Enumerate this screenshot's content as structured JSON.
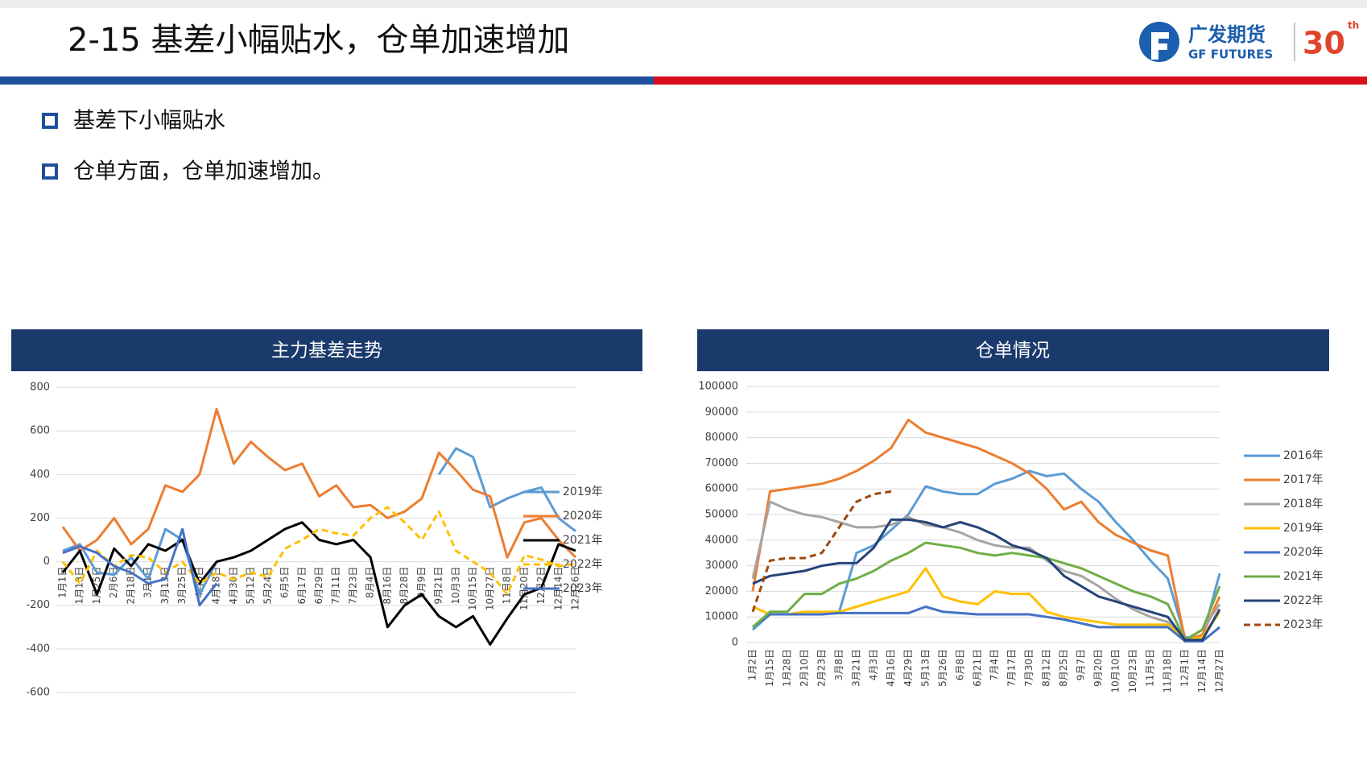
{
  "header": {
    "title": "2-15 基差小幅贴水，仓单加速增加",
    "logo_cn": "广发期货",
    "logo_en": "GF FUTURES",
    "badge": "30",
    "badge_sup": "th"
  },
  "bullets": [
    "基差下小幅贴水",
    "仓单方面，仓单加速增加。"
  ],
  "chart_data": [
    {
      "type": "line",
      "title": "主力基差走势",
      "categories": [
        "1月1日",
        "1月13日",
        "1月25日",
        "2月6日",
        "2月18日",
        "3月1日",
        "3月13日",
        "3月25日",
        "4月6日",
        "4月18日",
        "4月30日",
        "5月12日",
        "5月24日",
        "6月5日",
        "6月17日",
        "6月29日",
        "7月11日",
        "7月23日",
        "8月4日",
        "8月16日",
        "8月28日",
        "9月9日",
        "9月21日",
        "10月3日",
        "10月15日",
        "10月27日",
        "11月8日",
        "11月20日",
        "12月2日",
        "12月14日",
        "12月26日"
      ],
      "series": [
        {
          "name": "2019年",
          "color": "#5b9bd5",
          "dashed": false,
          "values": [
            50,
            80,
            -50,
            -60,
            20,
            -80,
            150,
            100,
            -150,
            0,
            null,
            null,
            null,
            null,
            null,
            null,
            null,
            null,
            null,
            null,
            null,
            null,
            400,
            520,
            480,
            250,
            290,
            320,
            340,
            200,
            140
          ]
        },
        {
          "name": "2020年",
          "color": "#ed7d31",
          "dashed": false,
          "values": [
            160,
            50,
            100,
            200,
            80,
            150,
            350,
            320,
            400,
            700,
            450,
            550,
            480,
            420,
            450,
            300,
            350,
            250,
            260,
            200,
            230,
            290,
            500,
            420,
            330,
            300,
            20,
            180,
            200,
            100,
            20
          ]
        },
        {
          "name": "2021年",
          "color": "#000000",
          "dashed": false,
          "values": [
            -50,
            50,
            -150,
            60,
            -20,
            80,
            50,
            100,
            -100,
            0,
            20,
            50,
            100,
            150,
            180,
            100,
            80,
            100,
            20,
            -300,
            -200,
            -150,
            -250,
            -300,
            -250,
            -380,
            -260,
            -150,
            -120,
            80,
            50
          ]
        },
        {
          "name": "2022年",
          "color": "#ffc000",
          "dashed": true,
          "values": [
            0,
            -100,
            50,
            -20,
            30,
            20,
            -50,
            0,
            -100,
            -50,
            -80,
            -50,
            -70,
            60,
            100,
            150,
            130,
            120,
            200,
            250,
            180,
            100,
            230,
            50,
            0,
            -50,
            -150,
            30,
            10,
            -20,
            -10
          ]
        },
        {
          "name": "2023年",
          "color": "#4472c4",
          "dashed": false,
          "values": [
            40,
            70,
            40,
            -20,
            -50,
            -100,
            -80,
            150,
            -200,
            -100,
            null,
            null,
            null,
            null,
            null,
            null,
            null,
            null,
            null,
            null,
            null,
            null,
            null,
            null,
            null,
            null,
            null,
            null,
            null,
            null,
            null
          ]
        }
      ],
      "ylim": [
        -600,
        800
      ],
      "yticks": [
        -600,
        -400,
        -200,
        0,
        200,
        400,
        600,
        800
      ],
      "grid": true,
      "legend": "right"
    },
    {
      "type": "line",
      "title": "仓单情况",
      "categories": [
        "1月2日",
        "1月15日",
        "1月28日",
        "2月10日",
        "2月23日",
        "3月8日",
        "3月21日",
        "4月3日",
        "4月16日",
        "4月29日",
        "5月13日",
        "5月26日",
        "6月8日",
        "6月21日",
        "7月4日",
        "7月17日",
        "7月30日",
        "8月12日",
        "8月25日",
        "9月7日",
        "9月20日",
        "10月10日",
        "10月23日",
        "11月5日",
        "11月18日",
        "12月1日",
        "12月14日",
        "12月27日"
      ],
      "series": [
        {
          "name": "2016年",
          "color": "#5b9bd5",
          "dashed": false,
          "values": [
            5000,
            11000,
            11000,
            11000,
            11000,
            12000,
            35000,
            38000,
            44000,
            50000,
            61000,
            59000,
            58000,
            58000,
            62000,
            64000,
            67000,
            65000,
            66000,
            60000,
            55000,
            47000,
            40000,
            32000,
            25000,
            2000,
            2000,
            27000
          ]
        },
        {
          "name": "2017年",
          "color": "#ed7d31",
          "dashed": false,
          "values": [
            20000,
            59000,
            60000,
            61000,
            62000,
            64000,
            67000,
            71000,
            76000,
            87000,
            82000,
            80000,
            78000,
            76000,
            73000,
            70000,
            66000,
            60000,
            52000,
            55000,
            47000,
            42000,
            39000,
            36000,
            34000,
            1000,
            3000,
            18000
          ]
        },
        {
          "name": "2018年",
          "color": "#a5a5a5",
          "dashed": false,
          "values": [
            25000,
            55000,
            52000,
            50000,
            49000,
            47000,
            45000,
            45000,
            46000,
            49000,
            46000,
            45000,
            43000,
            40000,
            38000,
            37000,
            37000,
            32000,
            28000,
            26000,
            22000,
            17000,
            13000,
            10000,
            8000,
            1000,
            5000,
            15000
          ]
        },
        {
          "name": "2019年",
          "color": "#ffc000",
          "dashed": false,
          "values": [
            14000,
            11000,
            11000,
            12000,
            12000,
            12000,
            14000,
            16000,
            18000,
            20000,
            29000,
            18000,
            16000,
            15000,
            20000,
            19000,
            19000,
            12000,
            10000,
            9000,
            8000,
            7000,
            7000,
            7000,
            7000,
            1000,
            2000,
            12000
          ]
        },
        {
          "name": "2020年",
          "color": "#4472c4",
          "dashed": false,
          "values": [
            6000,
            11000,
            11000,
            11000,
            11000,
            11500,
            11500,
            11500,
            11500,
            11500,
            14000,
            12000,
            11500,
            11000,
            11000,
            11000,
            11000,
            10000,
            9000,
            7500,
            6000,
            6000,
            6000,
            6000,
            6000,
            500,
            500,
            6000
          ]
        },
        {
          "name": "2021年",
          "color": "#70ad47",
          "dashed": false,
          "values": [
            6000,
            12000,
            12000,
            19000,
            19000,
            23000,
            25000,
            28000,
            32000,
            35000,
            39000,
            38000,
            37000,
            35000,
            34000,
            35000,
            34000,
            33000,
            31000,
            29000,
            26000,
            23000,
            20000,
            18000,
            15000,
            1000,
            5000,
            22000
          ]
        },
        {
          "name": "2022年",
          "color": "#264478",
          "dashed": false,
          "values": [
            23000,
            26000,
            27000,
            28000,
            30000,
            31000,
            31000,
            37000,
            48000,
            48000,
            47000,
            45000,
            47000,
            45000,
            42000,
            38000,
            36000,
            33000,
            26000,
            22000,
            18000,
            16000,
            14000,
            12000,
            10000,
            1000,
            1000,
            13000
          ]
        },
        {
          "name": "2023年",
          "color": "#9e480e",
          "dashed": true,
          "values": [
            12000,
            32000,
            33000,
            33000,
            35000,
            45000,
            55000,
            58000,
            59000,
            null,
            null,
            null,
            null,
            null,
            null,
            null,
            null,
            null,
            null,
            null,
            null,
            null,
            null,
            null,
            null,
            null,
            null,
            null
          ]
        }
      ],
      "ylim": [
        0,
        100000
      ],
      "yticks": [
        0,
        10000,
        20000,
        30000,
        40000,
        50000,
        60000,
        70000,
        80000,
        90000,
        100000
      ],
      "grid": true,
      "legend": "right"
    }
  ]
}
